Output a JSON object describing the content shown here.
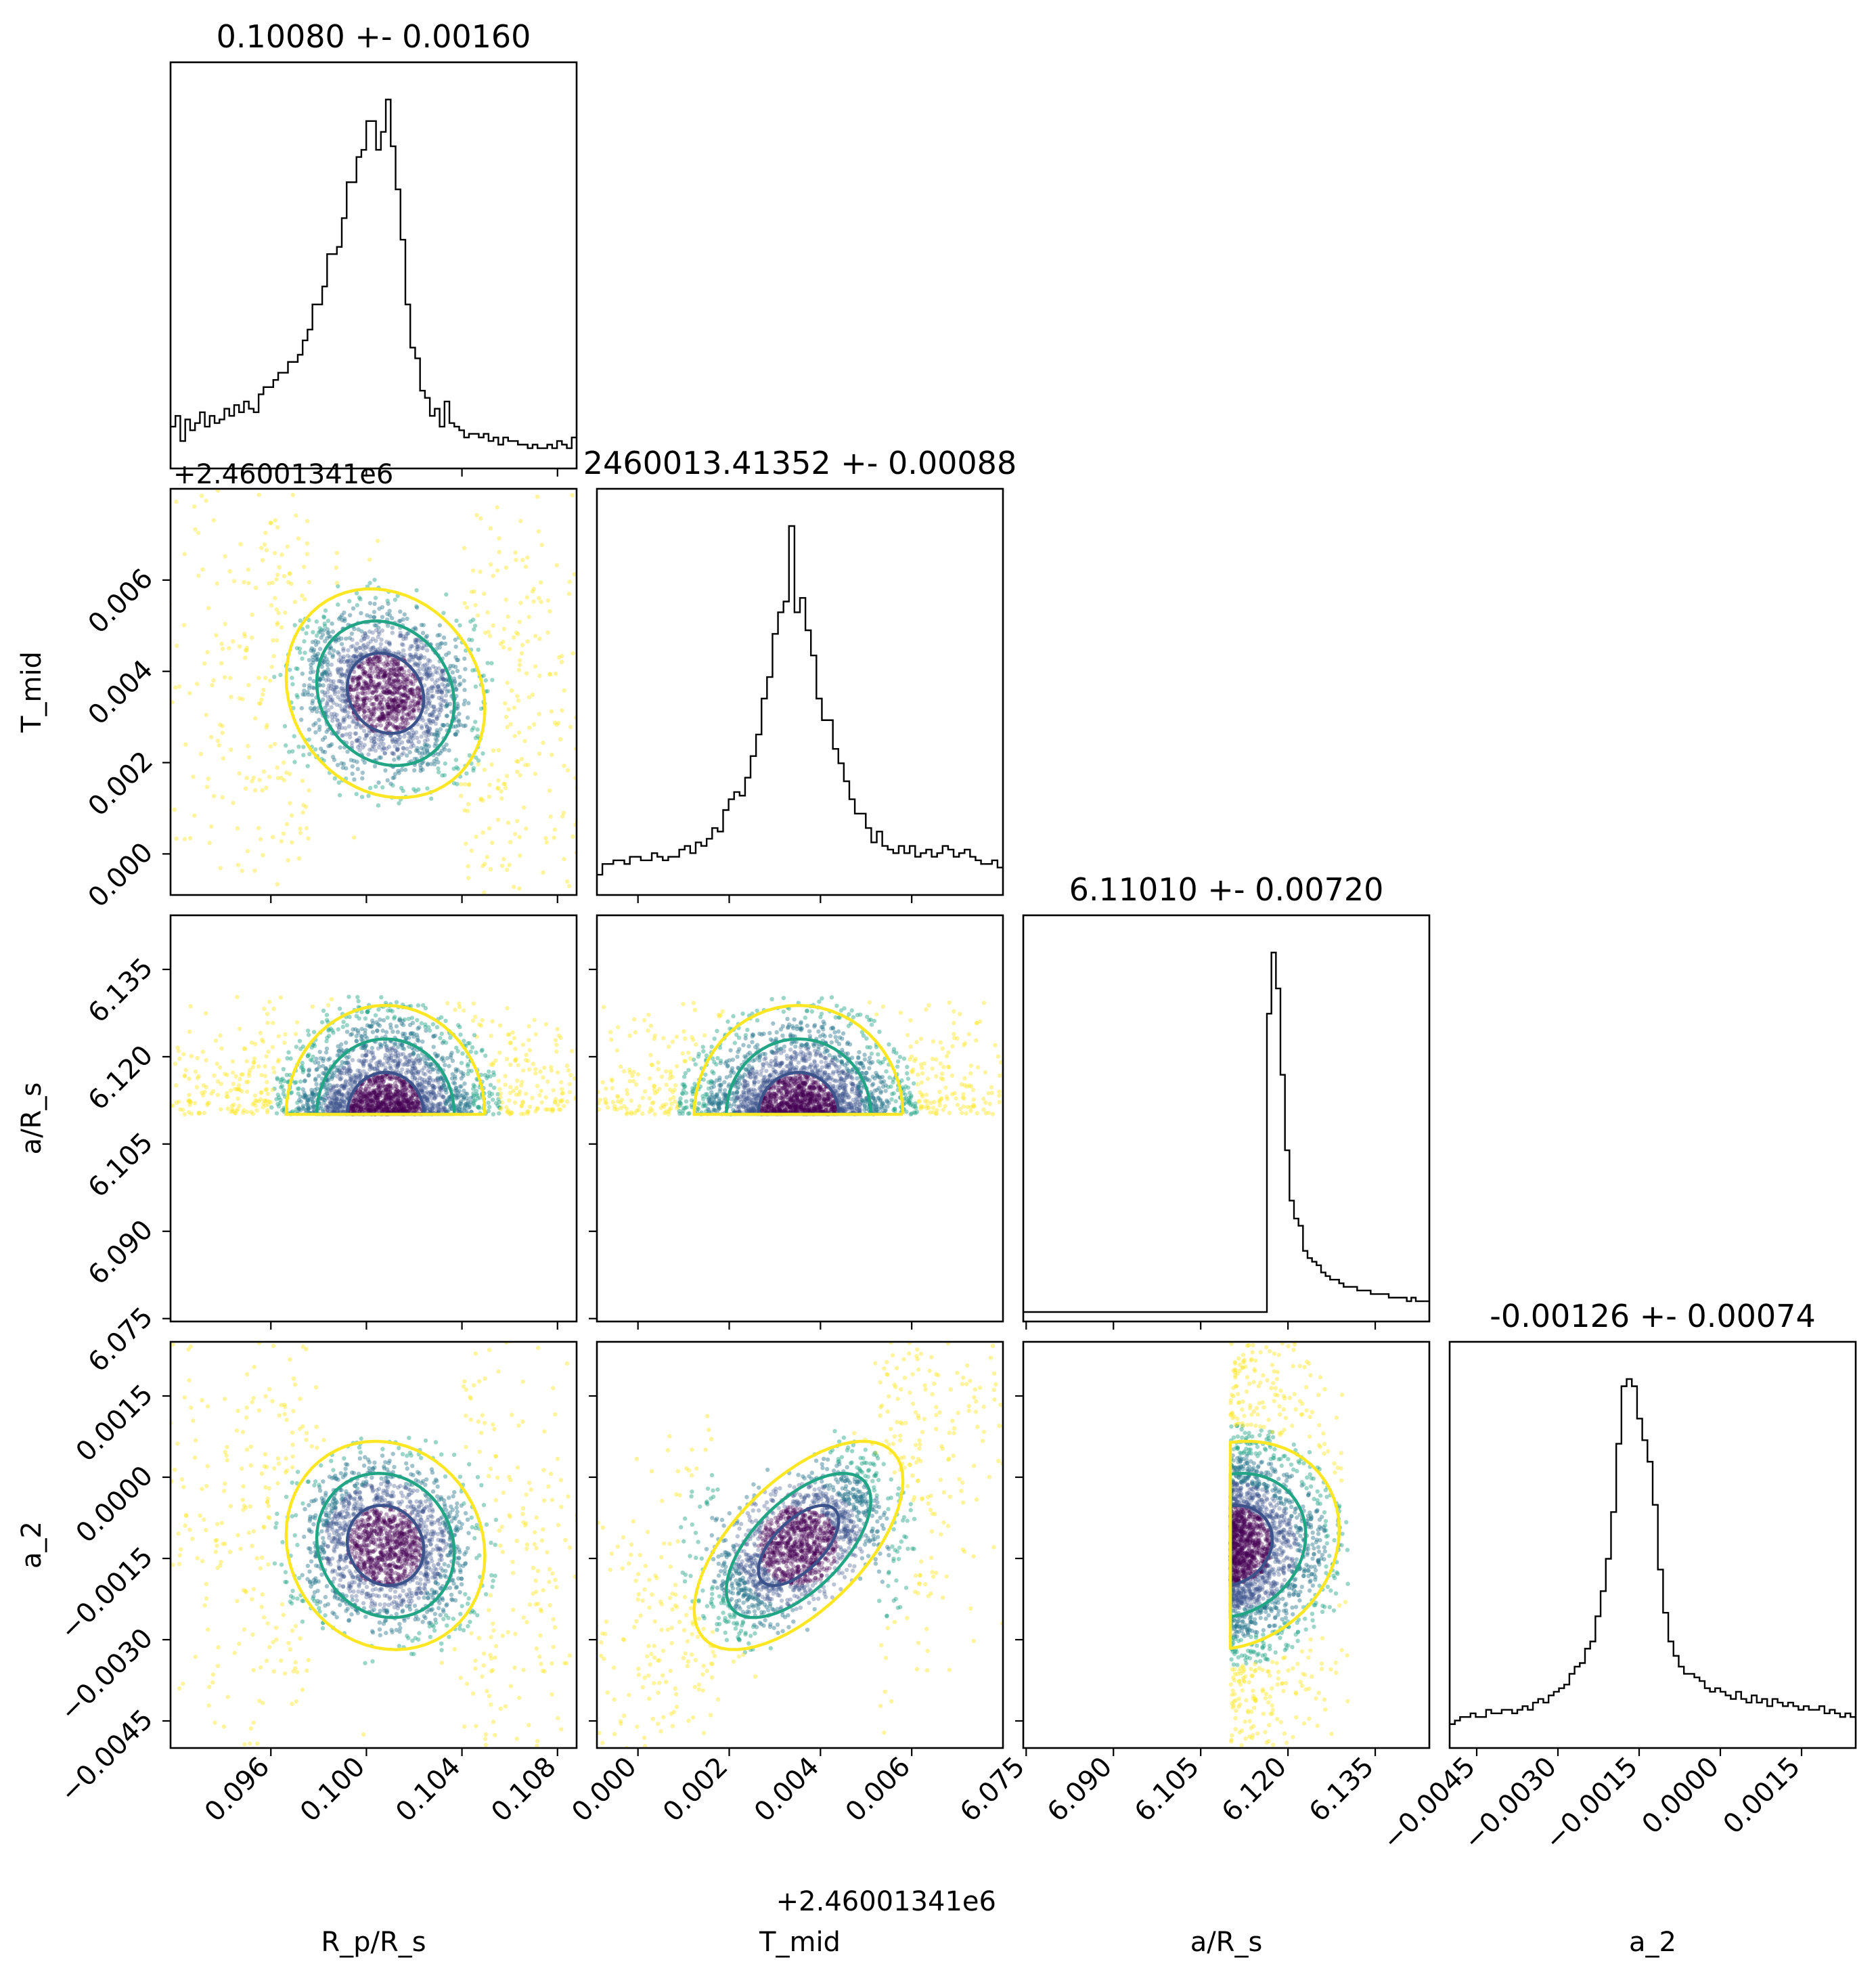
{
  "chart_data": {
    "type": "corner",
    "colormap": {
      "sigma_1": "#3b528b",
      "sigma_2": "#21a585",
      "sigma_3": "#fde725",
      "core": "#440154",
      "mid": "#2a788e"
    },
    "parameters": [
      {
        "key": "rp",
        "label": "R_p/R_s",
        "title": "0.10080 +- 0.00160",
        "median": 0.1008,
        "sigma": 0.0016,
        "range": [
          0.0918,
          0.1088
        ],
        "ticks": [
          "0.096",
          "0.100",
          "0.104",
          "0.108"
        ],
        "tick_values": [
          0.096,
          0.1,
          0.104,
          0.108
        ],
        "offset_text": ""
      },
      {
        "key": "tmid",
        "label": "T_mid",
        "title": "2460013.41352 +- 0.00088",
        "median": 0.00352,
        "sigma": 0.00088,
        "range": [
          -0.0009,
          0.008
        ],
        "ticks": [
          "0.000",
          "0.002",
          "0.004",
          "0.006"
        ],
        "tick_values": [
          0.0,
          0.002,
          0.004,
          0.006
        ],
        "offset_text": "+2.46001341e6"
      },
      {
        "key": "ars",
        "label": "a/R_s",
        "title": "6.11010 +- 0.00720",
        "median": 6.1101,
        "sigma": 0.0072,
        "range": [
          6.0745,
          6.1443
        ],
        "ticks": [
          "6.075",
          "6.090",
          "6.105",
          "6.120",
          "6.135"
        ],
        "tick_values": [
          6.075,
          6.09,
          6.105,
          6.12,
          6.135
        ],
        "offset_text": ""
      },
      {
        "key": "a2",
        "label": "a_2",
        "title": "-0.00126 +- 0.00074",
        "median": -0.00126,
        "sigma": 0.00074,
        "range": [
          -0.005,
          0.0025
        ],
        "ticks": [
          "−0.0045",
          "−0.0030",
          "−0.0015",
          "0.0000",
          "0.0015"
        ],
        "tick_values": [
          -0.0045,
          -0.003,
          -0.0015,
          0.0,
          0.0015
        ],
        "offset_text": ""
      }
    ],
    "histograms": {
      "rp": [
        0.09,
        0.12,
        0.05,
        0.11,
        0.08,
        0.1,
        0.13,
        0.09,
        0.12,
        0.1,
        0.11,
        0.14,
        0.12,
        0.15,
        0.13,
        0.16,
        0.14,
        0.13,
        0.18,
        0.2,
        0.2,
        0.22,
        0.24,
        0.24,
        0.27,
        0.27,
        0.29,
        0.33,
        0.36,
        0.43,
        0.43,
        0.48,
        0.57,
        0.57,
        0.59,
        0.67,
        0.77,
        0.77,
        0.84,
        0.86,
        0.94,
        0.94,
        0.86,
        0.91,
        1.0,
        0.87,
        0.75,
        0.61,
        0.43,
        0.31,
        0.28,
        0.19,
        0.17,
        0.12,
        0.14,
        0.09,
        0.16,
        0.1,
        0.09,
        0.08,
        0.06,
        0.07,
        0.07,
        0.06,
        0.07,
        0.05,
        0.06,
        0.04,
        0.06,
        0.05,
        0.05,
        0.04,
        0.04,
        0.03,
        0.04,
        0.03,
        0.03,
        0.04,
        0.03,
        0.05,
        0.04,
        0.03,
        0.06
      ],
      "tmid": [
        0.03,
        0.06,
        0.06,
        0.07,
        0.07,
        0.06,
        0.08,
        0.08,
        0.07,
        0.07,
        0.09,
        0.08,
        0.07,
        0.08,
        0.08,
        0.1,
        0.11,
        0.09,
        0.12,
        0.11,
        0.13,
        0.16,
        0.15,
        0.21,
        0.24,
        0.26,
        0.25,
        0.3,
        0.36,
        0.42,
        0.52,
        0.58,
        0.7,
        0.76,
        0.79,
        1.0,
        0.76,
        0.8,
        0.71,
        0.64,
        0.52,
        0.46,
        0.46,
        0.38,
        0.34,
        0.29,
        0.24,
        0.2,
        0.2,
        0.16,
        0.12,
        0.15,
        0.11,
        0.1,
        0.09,
        0.11,
        0.09,
        0.11,
        0.08,
        0.09,
        0.1,
        0.08,
        0.09,
        0.11,
        0.1,
        0.08,
        0.09,
        0.1,
        0.08,
        0.07,
        0.06,
        0.06,
        0.07,
        0.05
      ],
      "ars": [
        0,
        0,
        0,
        0,
        0,
        0,
        0,
        0,
        0,
        0,
        0,
        0,
        0,
        0,
        0,
        0,
        0,
        0,
        0,
        0,
        0,
        0,
        0,
        0,
        0,
        0,
        0,
        0,
        0,
        0,
        0,
        0,
        0,
        0,
        0,
        0,
        0,
        0,
        0,
        0,
        0,
        0,
        0,
        0,
        0,
        0,
        0,
        0,
        0,
        0,
        0,
        0,
        0,
        0,
        0.83,
        1.0,
        0.9,
        0.66,
        0.45,
        0.31,
        0.26,
        0.24,
        0.17,
        0.15,
        0.14,
        0.13,
        0.11,
        0.1,
        0.09,
        0.09,
        0.08,
        0.07,
        0.07,
        0.07,
        0.06,
        0.06,
        0.06,
        0.05,
        0.05,
        0.05,
        0.05,
        0.04,
        0.04,
        0.04,
        0.04,
        0.03,
        0.04,
        0.03,
        0.03,
        0.03
      ],
      "a2": [
        0.04,
        0.05,
        0.06,
        0.06,
        0.07,
        0.06,
        0.06,
        0.08,
        0.07,
        0.07,
        0.08,
        0.08,
        0.07,
        0.08,
        0.09,
        0.08,
        0.1,
        0.11,
        0.1,
        0.12,
        0.13,
        0.14,
        0.15,
        0.18,
        0.2,
        0.21,
        0.25,
        0.27,
        0.34,
        0.41,
        0.5,
        0.63,
        0.82,
        0.98,
        1.0,
        0.98,
        0.89,
        0.83,
        0.77,
        0.65,
        0.47,
        0.35,
        0.27,
        0.23,
        0.2,
        0.18,
        0.18,
        0.17,
        0.16,
        0.14,
        0.13,
        0.14,
        0.13,
        0.12,
        0.11,
        0.13,
        0.11,
        0.1,
        0.12,
        0.1,
        0.11,
        0.09,
        0.11,
        0.1,
        0.09,
        0.1,
        0.09,
        0.08,
        0.09,
        0.08,
        0.08,
        0.09,
        0.07,
        0.08,
        0.07,
        0.06,
        0.07,
        0.06
      ]
    },
    "correlations": {
      "tmid|rp": -0.15,
      "ars|rp": 0.0,
      "ars|tmid": 0.0,
      "a2|rp": -0.1,
      "a2|tmid": 0.62,
      "a2|ars": 0.15
    }
  }
}
